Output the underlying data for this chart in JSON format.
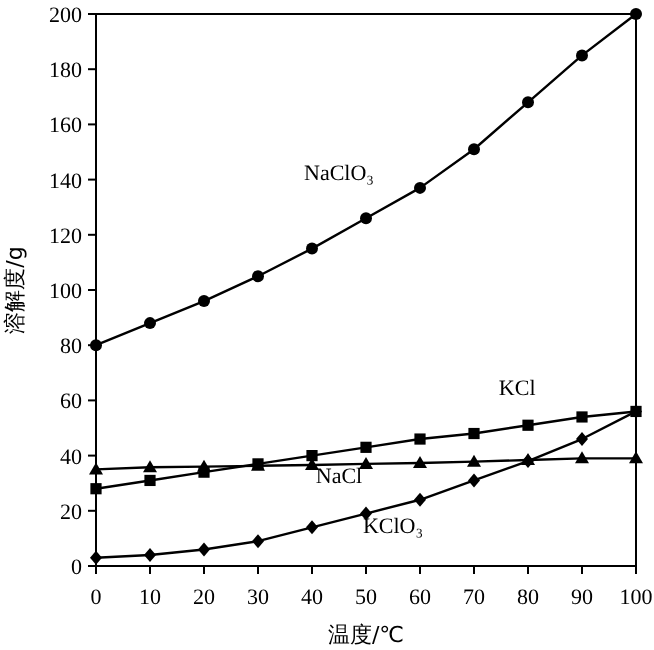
{
  "chart_data": {
    "type": "line",
    "xlabel": "温度/℃",
    "ylabel": "溶解度/g",
    "x": [
      0,
      10,
      20,
      30,
      40,
      50,
      60,
      70,
      80,
      90,
      100
    ],
    "series": [
      {
        "name": "NaClO₃",
        "color": "#000000",
        "marker": "circle",
        "values": [
          80,
          88,
          96,
          105,
          115,
          126,
          137,
          151,
          168,
          185,
          200
        ]
      },
      {
        "name": "KCl",
        "color": "#000000",
        "marker": "square",
        "values": [
          28,
          31,
          34,
          37,
          40,
          43,
          46,
          48,
          51,
          54,
          56
        ]
      },
      {
        "name": "NaCl",
        "color": "#000000",
        "marker": "triangle",
        "values": [
          35,
          35.8,
          36,
          36.3,
          36.6,
          37,
          37.3,
          37.8,
          38.4,
          39,
          39
        ]
      },
      {
        "name": "KClO₃",
        "color": "#000000",
        "marker": "diamond",
        "values": [
          3,
          4,
          6,
          9,
          14,
          19,
          24,
          31,
          38,
          46,
          56
        ]
      }
    ],
    "xlim": [
      0,
      100
    ],
    "ylim": [
      0,
      200
    ],
    "xticks": [
      0,
      10,
      20,
      30,
      40,
      50,
      60,
      70,
      80,
      90,
      100
    ],
    "yticks": [
      0,
      20,
      40,
      60,
      80,
      100,
      120,
      140,
      160,
      180,
      200
    ],
    "grid": false,
    "line_style": "solid"
  }
}
